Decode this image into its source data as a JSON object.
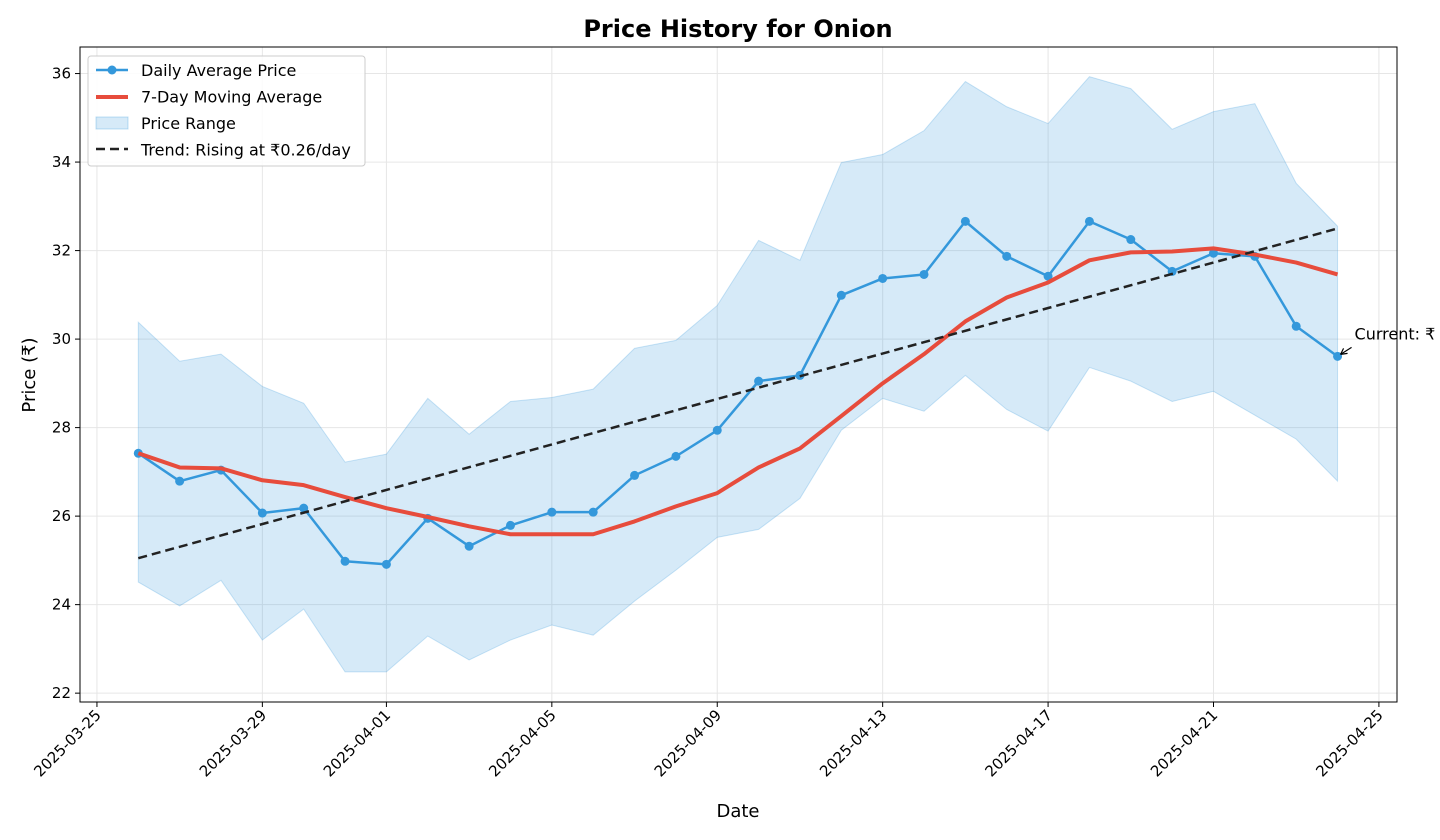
{
  "chart_data": {
    "type": "line",
    "title": "Price History for Onion",
    "x_label": "Date",
    "y_label": "Price (₹)",
    "x": [
      "2025-03-26",
      "2025-03-27",
      "2025-03-28",
      "2025-03-29",
      "2025-03-30",
      "2025-03-31",
      "2025-04-01",
      "2025-04-02",
      "2025-04-03",
      "2025-04-04",
      "2025-04-05",
      "2025-04-06",
      "2025-04-07",
      "2025-04-08",
      "2025-04-09",
      "2025-04-10",
      "2025-04-11",
      "2025-04-12",
      "2025-04-13",
      "2025-04-14",
      "2025-04-15",
      "2025-04-16",
      "2025-04-17",
      "2025-04-18",
      "2025-04-19",
      "2025-04-20",
      "2025-04-21",
      "2025-04-22",
      "2025-04-23",
      "2025-04-24"
    ],
    "series": [
      {
        "name": "Daily Average Price",
        "color": "#3498db",
        "values": [
          27.42,
          26.79,
          27.04,
          26.07,
          26.18,
          24.98,
          24.91,
          25.95,
          25.32,
          25.79,
          26.09,
          26.09,
          26.92,
          27.35,
          27.94,
          29.05,
          29.18,
          30.99,
          31.37,
          31.46,
          32.66,
          31.87,
          31.42,
          32.66,
          32.25,
          31.53,
          31.94,
          31.87,
          30.29,
          29.61
        ]
      },
      {
        "name": "7-Day Moving Average",
        "color": "#e74c3c",
        "values": [
          27.42,
          27.1,
          27.08,
          26.81,
          26.7,
          26.43,
          26.18,
          25.98,
          25.77,
          25.59,
          25.59,
          25.59,
          25.88,
          26.22,
          26.52,
          27.1,
          27.53,
          28.26,
          29.0,
          29.66,
          30.4,
          30.94,
          31.28,
          31.78,
          31.96,
          31.98,
          32.05,
          31.91,
          31.73,
          31.46
        ]
      }
    ],
    "range": {
      "name": "Price Range",
      "color": "#3498db",
      "upper": [
        30.38,
        29.5,
        29.66,
        28.93,
        28.55,
        27.22,
        27.4,
        28.66,
        27.85,
        28.59,
        28.68,
        28.87,
        29.79,
        29.97,
        30.76,
        32.23,
        31.78,
        33.99,
        34.17,
        34.71,
        35.82,
        35.25,
        34.87,
        35.93,
        35.66,
        34.74,
        35.14,
        35.32,
        33.52,
        32.55
      ],
      "lower": [
        24.51,
        23.97,
        24.55,
        23.2,
        23.9,
        22.48,
        22.48,
        23.29,
        22.75,
        23.2,
        23.54,
        23.31,
        24.08,
        24.78,
        25.52,
        25.7,
        26.4,
        27.94,
        28.66,
        28.37,
        29.18,
        28.41,
        27.92,
        29.36,
        29.05,
        28.59,
        28.82,
        28.28,
        27.74,
        26.79
      ]
    },
    "trend": {
      "name": "Trend: Rising at ₹0.26/day",
      "color": "#222222",
      "x": [
        "2025-03-26",
        "2025-04-24"
      ],
      "values": [
        25.05,
        32.5
      ]
    },
    "annotation": {
      "text": "Current: ₹",
      "x": "2025-04-24",
      "value": 29.61
    },
    "xlim": [
      "2025-03-24T14:10",
      "2025-04-25T10:30"
    ],
    "xticks": [
      "2025-03-25",
      "2025-03-29",
      "2025-04-01",
      "2025-04-05",
      "2025-04-09",
      "2025-04-13",
      "2025-04-17",
      "2025-04-21",
      "2025-04-25"
    ],
    "ylim": [
      21.8,
      36.6
    ],
    "yticks": [
      22,
      24,
      26,
      28,
      30,
      32,
      34,
      36
    ],
    "grid": true,
    "legend": "upper left"
  }
}
